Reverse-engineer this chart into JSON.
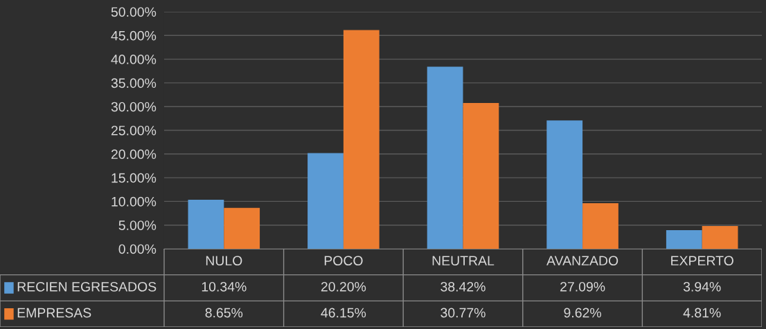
{
  "chart_data": {
    "type": "bar",
    "categories": [
      "NULO",
      "POCO",
      "NEUTRAL",
      "AVANZADO",
      "EXPERTO"
    ],
    "series": [
      {
        "name": "RECIEN EGRESADOS",
        "color": "#5b9bd5",
        "values": [
          10.34,
          20.2,
          38.42,
          27.09,
          3.94
        ],
        "value_labels": [
          "10.34%",
          "20.20%",
          "38.42%",
          "27.09%",
          "3.94%"
        ]
      },
      {
        "name": "EMPRESAS",
        "color": "#ed7d31",
        "values": [
          8.65,
          46.15,
          30.77,
          9.62,
          4.81
        ],
        "value_labels": [
          "8.65%",
          "46.15%",
          "30.77%",
          "9.62%",
          "4.81%"
        ]
      }
    ],
    "ylim": [
      0,
      50
    ],
    "yticks": [
      {
        "value": 0,
        "label": "0.00%"
      },
      {
        "value": 5,
        "label": "5.00%"
      },
      {
        "value": 10,
        "label": "10.00%"
      },
      {
        "value": 15,
        "label": "15.00%"
      },
      {
        "value": 20,
        "label": "20.00%"
      },
      {
        "value": 25,
        "label": "25.00%"
      },
      {
        "value": 30,
        "label": "30.00%"
      },
      {
        "value": 35,
        "label": "35.00%"
      },
      {
        "value": 40,
        "label": "40.00%"
      },
      {
        "value": 45,
        "label": "45.00%"
      },
      {
        "value": 50,
        "label": "50.00%"
      }
    ],
    "grid": "y",
    "legend": "bottom left"
  }
}
